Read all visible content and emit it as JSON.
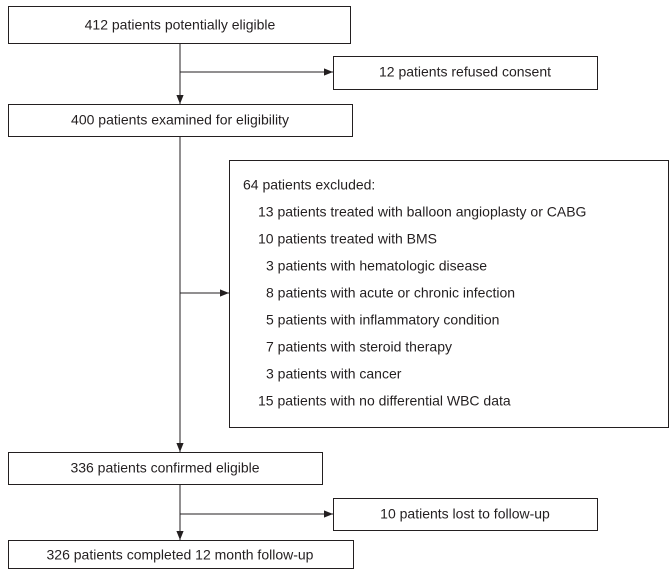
{
  "nodes": [
    {
      "label": "412 patients potentially eligible"
    },
    {
      "label": "12 patients refused consent"
    },
    {
      "label": "400 patients examined for eligibility"
    },
    {
      "label": "336 patients confirmed eligible"
    },
    {
      "label": "10 patients lost to follow-up"
    },
    {
      "label": "326 patients completed 12 month follow-up"
    }
  ],
  "exclusion": {
    "title": "64 patients excluded:",
    "items": [
      "13 patients treated with balloon angioplasty or CABG",
      "10 patients treated with BMS",
      "3 patients with hematologic disease",
      "8 patients with acute or chronic infection",
      "5 patients with inflammatory condition",
      "7 patients with steroid therapy",
      "3 patients with cancer",
      "15 patients with no differential WBC data"
    ]
  }
}
